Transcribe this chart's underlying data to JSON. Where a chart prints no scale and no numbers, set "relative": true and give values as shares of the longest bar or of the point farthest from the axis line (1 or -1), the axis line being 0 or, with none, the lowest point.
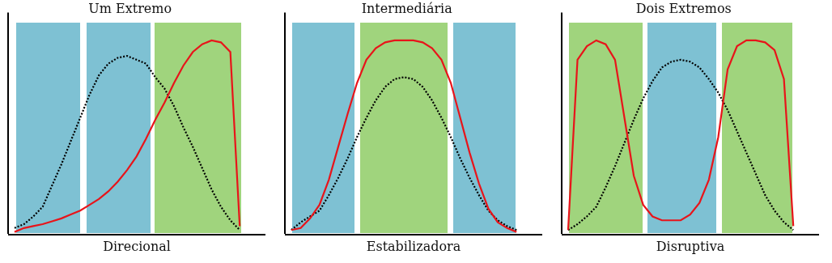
{
  "chart_data": [
    {
      "type": "line",
      "title": "Um Extremo",
      "xlabel": "Direcional",
      "relative": true,
      "marker": "none",
      "categories": [
        null,
        null,
        null,
        null,
        null,
        null,
        null,
        null,
        null,
        null,
        null,
        null,
        null,
        null,
        null,
        null,
        null,
        null,
        null,
        null,
        null,
        null,
        null,
        null,
        null
      ],
      "series": [
        {
          "color": "#000000",
          "line_style": "dotted",
          "values": [
            0.03,
            0.05,
            0.09,
            0.14,
            0.25,
            0.36,
            0.48,
            0.6,
            0.72,
            0.82,
            0.88,
            0.91,
            0.92,
            0.9,
            0.88,
            0.81,
            0.75,
            0.66,
            0.55,
            0.45,
            0.34,
            0.23,
            0.14,
            0.07,
            0.02
          ]
        },
        {
          "color": "#e8141a",
          "line_style": "solid",
          "values": [
            0.01,
            0.03,
            0.04,
            0.05,
            0.065,
            0.08,
            0.1,
            0.12,
            0.15,
            0.18,
            0.22,
            0.27,
            0.33,
            0.4,
            0.49,
            0.59,
            0.68,
            0.78,
            0.87,
            0.94,
            0.98,
            1,
            0.99,
            0.94,
            0.04
          ]
        }
      ]
    },
    {
      "type": "line",
      "title": "Intermediária",
      "xlabel": "Estabilizadora",
      "relative": true,
      "marker": "none",
      "categories": [
        null,
        null,
        null,
        null,
        null,
        null,
        null,
        null,
        null,
        null,
        null,
        null,
        null,
        null,
        null,
        null,
        null,
        null,
        null,
        null,
        null,
        null,
        null,
        null,
        null
      ],
      "series": [
        {
          "color": "#000000",
          "line_style": "dotted",
          "values": [
            0.02,
            0.06,
            0.09,
            0.12,
            0.2,
            0.29,
            0.39,
            0.5,
            0.6,
            0.69,
            0.76,
            0.8,
            0.81,
            0.8,
            0.76,
            0.69,
            0.6,
            0.5,
            0.39,
            0.29,
            0.2,
            0.12,
            0.07,
            0.04,
            0.02
          ]
        },
        {
          "color": "#e8141a",
          "line_style": "solid",
          "values": [
            0.02,
            0.03,
            0.08,
            0.15,
            0.28,
            0.45,
            0.62,
            0.78,
            0.9,
            0.96,
            0.99,
            1,
            1,
            1,
            0.99,
            0.96,
            0.9,
            0.78,
            0.6,
            0.42,
            0.26,
            0.13,
            0.06,
            0.03,
            0.01
          ]
        }
      ]
    },
    {
      "type": "line",
      "title": "Dois Extremos",
      "xlabel": "Disruptiva",
      "relative": true,
      "marker": "none",
      "categories": [
        null,
        null,
        null,
        null,
        null,
        null,
        null,
        null,
        null,
        null,
        null,
        null,
        null,
        null,
        null,
        null,
        null,
        null,
        null,
        null,
        null,
        null,
        null,
        null,
        null
      ],
      "series": [
        {
          "color": "#000000",
          "line_style": "dotted",
          "values": [
            0.02,
            0.05,
            0.09,
            0.14,
            0.24,
            0.35,
            0.47,
            0.59,
            0.7,
            0.79,
            0.86,
            0.89,
            0.9,
            0.89,
            0.86,
            0.8,
            0.73,
            0.64,
            0.53,
            0.42,
            0.31,
            0.2,
            0.12,
            0.06,
            0.02
          ]
        },
        {
          "color": "#e8141a",
          "line_style": "solid",
          "values": [
            0.02,
            0.9,
            0.97,
            1,
            0.98,
            0.9,
            0.6,
            0.3,
            0.15,
            0.09,
            0.07,
            0.07,
            0.07,
            0.1,
            0.16,
            0.28,
            0.5,
            0.85,
            0.97,
            1,
            1,
            0.99,
            0.95,
            0.8,
            0.04
          ]
        }
      ]
    }
  ]
}
